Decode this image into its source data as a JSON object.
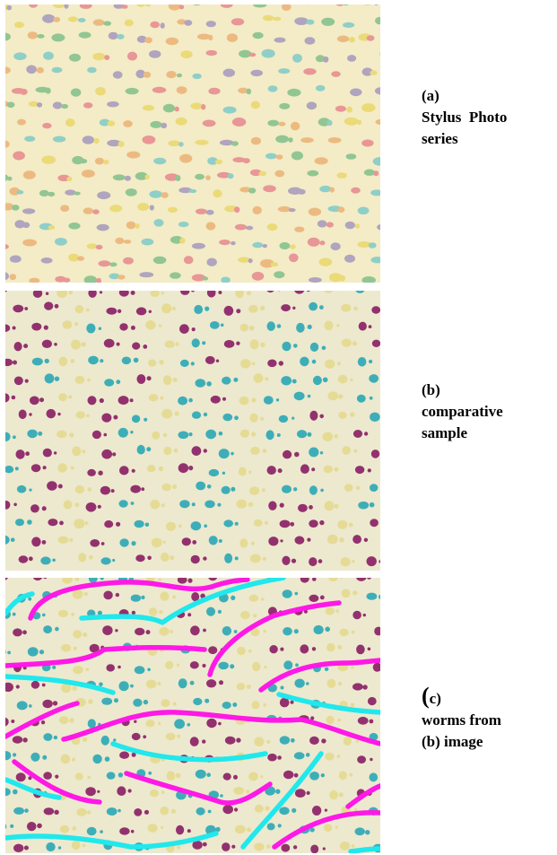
{
  "figures": [
    {
      "id": "a",
      "caption_lines": [
        "(a)",
        "Stylus  Photo",
        "series"
      ],
      "background": "#f3ecc6",
      "dot_colors": [
        "#3fb8c8",
        "#e0506f",
        "#e6cc3a",
        "#e8934a",
        "#7a6bb8",
        "#42a86a"
      ]
    },
    {
      "id": "b",
      "caption_lines": [
        "(b)",
        "comparative",
        "sample"
      ],
      "background": "#ece9cf",
      "dot_colors": [
        "#2aa7b5",
        "#8a1d63",
        "#e0c94b"
      ]
    },
    {
      "id": "c",
      "caption_prefix": "(",
      "caption_letter": "c)",
      "caption_lines": [
        "worms from",
        "(b) image"
      ],
      "background": "#ece9cf",
      "worm_colors": [
        "#ff18e6",
        "#20e8ec"
      ]
    }
  ]
}
